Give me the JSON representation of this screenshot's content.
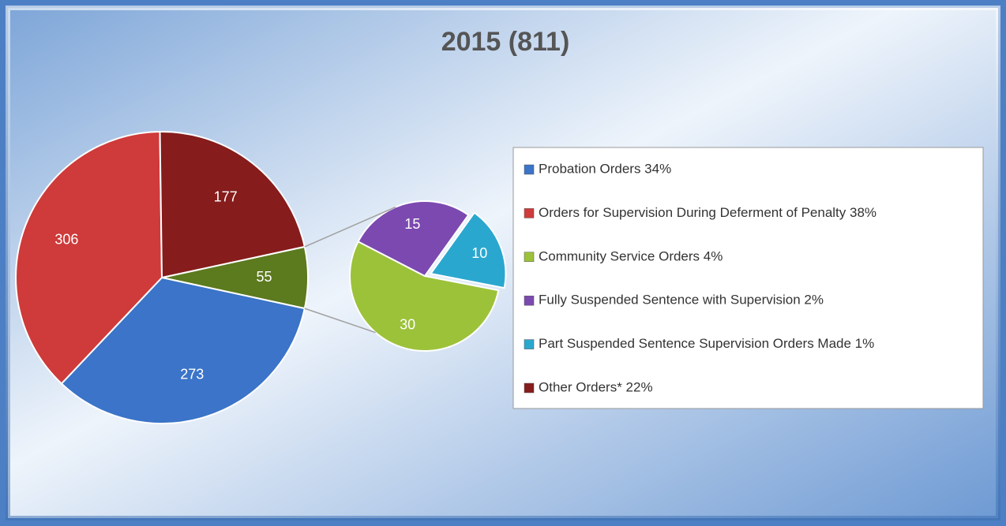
{
  "chart_data": {
    "type": "pie-of-pie",
    "title": "2015 (811)",
    "categories": [
      "Probation Orders 34%",
      "Orders for Supervision During Deferment of Penalty 38%",
      "Community Service Orders 4%",
      "Fully Suspended Sentence with Supervision 2%",
      "Part Suspended Sentence Supervision Orders Made 1%",
      "Other Orders* 22%"
    ],
    "values": [
      273,
      306,
      30,
      15,
      10,
      177
    ],
    "colors": [
      "#3b74c8",
      "#cf3a3a",
      "#9cc23a",
      "#7b49b0",
      "#2aa7cf",
      "#861c1c"
    ],
    "secondary": [
      false,
      false,
      true,
      true,
      true,
      false
    ],
    "secondary_total": 55,
    "secondary_total_color": "#5c7a1e"
  }
}
